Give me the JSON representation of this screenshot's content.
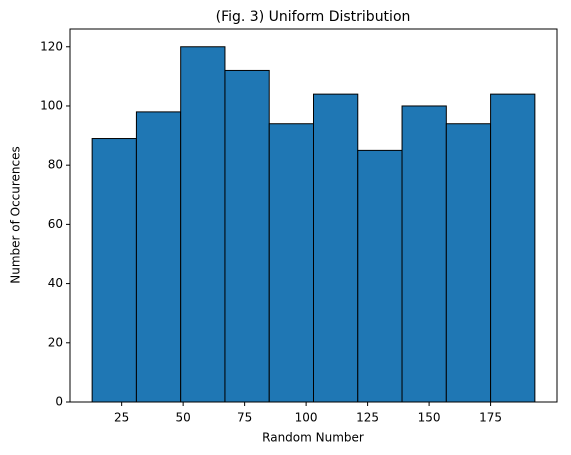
{
  "chart_data": {
    "type": "histogram",
    "title": "(Fig. 3) Uniform Distribution",
    "x_label": "Random Number",
    "y_label": "Number of Occurences",
    "bins": [
      13,
      31,
      49,
      67,
      85,
      103,
      121,
      139,
      157,
      175,
      193
    ],
    "values": [
      89,
      98,
      120,
      112,
      94,
      104,
      85,
      100,
      94,
      104
    ],
    "color": "#1f77b4",
    "edgecolor": "#000000",
    "xlim": [
      4,
      202
    ],
    "xticks": [
      25,
      50,
      75,
      100,
      125,
      150,
      175
    ],
    "ylim": [
      0,
      126
    ],
    "yticks": [
      0,
      20,
      40,
      60,
      80,
      100,
      120
    ],
    "grid": false
  }
}
